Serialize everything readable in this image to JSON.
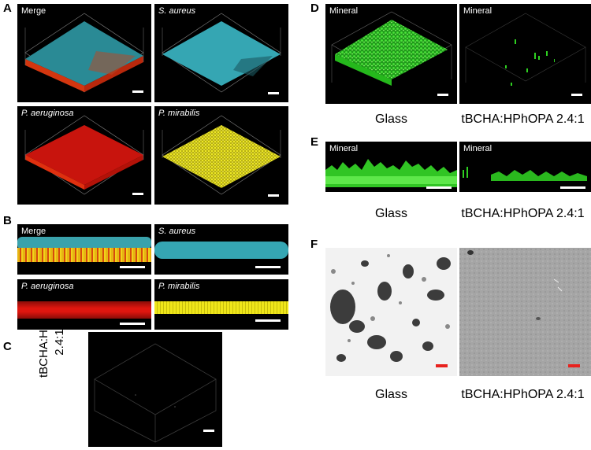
{
  "figure": {
    "panel_letters": [
      "A",
      "B",
      "C",
      "D",
      "E",
      "F"
    ],
    "panels": {
      "a_merge": {
        "label": "Merge",
        "italic": false
      },
      "a_saureus": {
        "label": "S. aureus",
        "italic": true
      },
      "a_paeruginosa": {
        "label": "P. aeruginosa",
        "italic": true
      },
      "a_pmirabilis": {
        "label": "P. mirabilis",
        "italic": true
      },
      "b_merge": {
        "label": "Merge",
        "italic": false
      },
      "b_saureus": {
        "label": "S. aureus",
        "italic": true
      },
      "b_paeruginosa": {
        "label": "P. aeruginosa",
        "italic": true
      },
      "b_pmirabilis": {
        "label": "P. mirabilis",
        "italic": true
      },
      "d_glass": {
        "label": "Mineral",
        "italic": false
      },
      "d_tbcha": {
        "label": "Mineral",
        "italic": false
      },
      "e_glass": {
        "label": "Mineral",
        "italic": false
      },
      "e_tbcha": {
        "label": "Mineral",
        "italic": false
      }
    },
    "c_side_label": {
      "line1": "tBCHA:HPhOPA",
      "line2": "2.4:1"
    },
    "captions": {
      "d_left": "Glass",
      "d_right": "tBCHA:HPhOPA 2.4:1",
      "e_left": "Glass",
      "e_right": "tBCHA:HPhOPA 2.4:1",
      "f_left": "Glass",
      "f_right": "tBCHA:HPhOPA 2.4:1"
    },
    "colors": {
      "s_aureus": "#35a6b3",
      "p_aeruginosa": "#d9160f",
      "p_mirabilis": "#e6e017",
      "mineral": "#3ad629",
      "scale_bar_f": "#e8221e"
    }
  }
}
